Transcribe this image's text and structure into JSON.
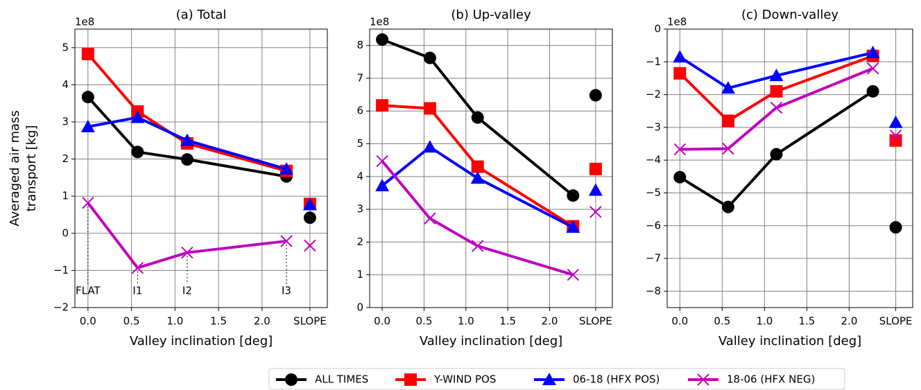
{
  "chart_data": [
    {
      "type": "line",
      "title": "(a) Total",
      "xlabel": "Valley inclination [deg]",
      "ylabel": [
        "Averaged air mass",
        "transport [kg]"
      ],
      "offset_label": "1e8",
      "x": [
        0,
        0.57,
        1.14,
        2.28
      ],
      "slope_x": 2.55,
      "xlim": [
        -0.15,
        2.75
      ],
      "xticks": [
        {
          "value": 0,
          "label": "0.0"
        },
        0.5,
        {
          "value": 1,
          "label": "1.0"
        },
        1.5,
        {
          "value": 2,
          "label": "2.0"
        },
        {
          "value": 2.55,
          "label": "SLOPE"
        }
      ],
      "ylim": [
        -2,
        5.5
      ],
      "yticks": [
        {
          "value": -2,
          "label": "−2"
        },
        {
          "value": -1,
          "label": "−1"
        },
        0,
        1,
        2,
        3,
        4,
        5
      ],
      "grid": true,
      "annotations": [
        "FLAT",
        "I1",
        "I2",
        "I3"
      ],
      "series": [
        {
          "name": "ALL TIMES",
          "color": "#000000",
          "marker": "circle",
          "values": [
            3.67,
            2.19,
            1.99,
            1.53
          ],
          "slope_value": 0.42
        },
        {
          "name": "Y-WIND POS",
          "color": "#ff0000",
          "marker": "square",
          "values": [
            4.83,
            3.28,
            2.42,
            1.68
          ],
          "slope_value": 0.79
        },
        {
          "name": "06-18 (HFX POS)",
          "color": "#0000ff",
          "marker": "triangle",
          "values": [
            2.87,
            3.12,
            2.5,
            1.73
          ],
          "slope_value": 0.77
        },
        {
          "name": "18-06 (HFX NEG)",
          "color": "#bf00bf",
          "marker": "x",
          "values": [
            0.82,
            -0.93,
            -0.52,
            -0.21
          ],
          "slope_value": -0.33
        }
      ]
    },
    {
      "type": "line",
      "title": "(b) Up-valley",
      "xlabel": "Valley inclination [deg]",
      "offset_label": "1e8",
      "x": [
        0,
        0.57,
        1.14,
        2.28
      ],
      "slope_x": 2.55,
      "xlim": [
        -0.15,
        2.75
      ],
      "xticks": [
        {
          "value": 0,
          "label": "0.0"
        },
        0.5,
        {
          "value": 1,
          "label": "1.0"
        },
        1.5,
        {
          "value": 2,
          "label": "2.0"
        },
        {
          "value": 2.55,
          "label": "SLOPE"
        }
      ],
      "ylim": [
        0,
        8.5
      ],
      "yticks": [
        0,
        1,
        2,
        3,
        4,
        5,
        6,
        7,
        8
      ],
      "grid": true,
      "series": [
        {
          "name": "ALL TIMES",
          "color": "#000000",
          "marker": "circle",
          "values": [
            8.18,
            7.62,
            5.8,
            3.42
          ],
          "slope_value": 6.48
        },
        {
          "name": "Y-WIND POS",
          "color": "#ff0000",
          "marker": "square",
          "values": [
            6.17,
            6.08,
            4.3,
            2.48
          ],
          "slope_value": 4.23
        },
        {
          "name": "06-18 (HFX POS)",
          "color": "#0000ff",
          "marker": "triangle",
          "values": [
            3.72,
            4.9,
            3.95,
            2.45
          ],
          "slope_value": 3.58
        },
        {
          "name": "18-06 (HFX NEG)",
          "color": "#bf00bf",
          "marker": "x",
          "values": [
            4.47,
            2.72,
            1.88,
            1.0
          ],
          "slope_value": 2.92
        }
      ]
    },
    {
      "type": "line",
      "title": "(c) Down-valley",
      "xlabel": "Valley inclination [deg]",
      "offset_label": "1e8",
      "x": [
        0,
        0.57,
        1.14,
        2.28
      ],
      "slope_x": 2.55,
      "xlim": [
        -0.15,
        2.75
      ],
      "xticks": [
        {
          "value": 0,
          "label": "0.0"
        },
        0.5,
        {
          "value": 1,
          "label": "1.0"
        },
        1.5,
        {
          "value": 2,
          "label": "2.0"
        },
        {
          "value": 2.55,
          "label": "SLOPE"
        }
      ],
      "ylim": [
        -8.5,
        0
      ],
      "yticks": [
        {
          "value": -8,
          "label": "−8"
        },
        {
          "value": -7,
          "label": "−7"
        },
        {
          "value": -6,
          "label": "−6"
        },
        {
          "value": -5,
          "label": "−5"
        },
        {
          "value": -4,
          "label": "−4"
        },
        {
          "value": -3,
          "label": "−3"
        },
        {
          "value": -2,
          "label": "−2"
        },
        {
          "value": -1,
          "label": "−1"
        },
        0
      ],
      "grid": true,
      "series": [
        {
          "name": "ALL TIMES",
          "color": "#000000",
          "marker": "circle",
          "values": [
            -4.52,
            -5.43,
            -3.82,
            -1.9
          ],
          "slope_value": -6.05
        },
        {
          "name": "Y-WIND POS",
          "color": "#ff0000",
          "marker": "square",
          "values": [
            -1.35,
            -2.8,
            -1.9,
            -0.82
          ],
          "slope_value": -3.4
        },
        {
          "name": "06-18 (HFX POS)",
          "color": "#0000ff",
          "marker": "triangle",
          "values": [
            -0.85,
            -1.8,
            -1.42,
            -0.72
          ],
          "slope_value": -2.85
        },
        {
          "name": "18-06 (HFX NEG)",
          "color": "#bf00bf",
          "marker": "x",
          "values": [
            -3.67,
            -3.65,
            -2.4,
            -1.2
          ],
          "slope_value": -3.25
        }
      ]
    }
  ]
}
